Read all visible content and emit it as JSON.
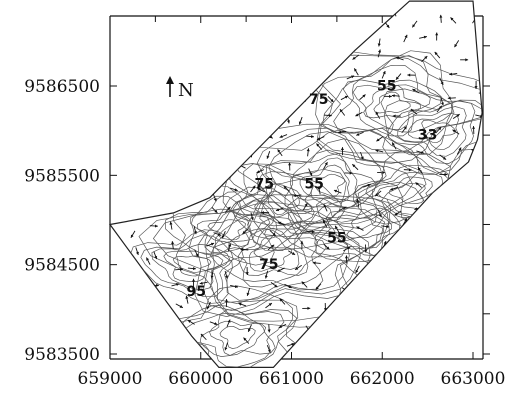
{
  "map": {
    "north_label": "N",
    "x_ticks": [
      {
        "value": 659000,
        "label": "659000"
      },
      {
        "value": 660000,
        "label": "660000"
      },
      {
        "value": 661000,
        "label": "661000"
      },
      {
        "value": 662000,
        "label": "662000"
      },
      {
        "value": 663000,
        "label": "663000"
      }
    ],
    "y_ticks": [
      {
        "value": 9583500,
        "label": "9583500"
      },
      {
        "value": 9584500,
        "label": "9584500"
      },
      {
        "value": 9585500,
        "label": "9585500"
      },
      {
        "value": 9586500,
        "label": "9586500"
      }
    ],
    "contour_labels": [
      {
        "text": "95",
        "x": 659950,
        "y": 9584150
      },
      {
        "text": "75",
        "x": 660700,
        "y": 9585350
      },
      {
        "text": "75",
        "x": 660750,
        "y": 9584450
      },
      {
        "text": "75",
        "x": 661300,
        "y": 9586300
      },
      {
        "text": "55",
        "x": 661250,
        "y": 9585350
      },
      {
        "text": "55",
        "x": 661500,
        "y": 9584750
      },
      {
        "text": "55",
        "x": 662050,
        "y": 9586450
      },
      {
        "text": "33",
        "x": 662500,
        "y": 9585900
      }
    ],
    "boundary": [
      [
        659000,
        9584950
      ],
      [
        659700,
        9585080
      ],
      [
        660100,
        9585250
      ],
      [
        661700,
        9586900
      ],
      [
        662300,
        9587450
      ],
      [
        663000,
        9587450
      ],
      [
        663100,
        9586200
      ],
      [
        663050,
        9585900
      ],
      [
        662950,
        9585650
      ],
      [
        662550,
        9585300
      ],
      [
        660800,
        9583350
      ],
      [
        660200,
        9583350
      ],
      [
        659900,
        9583700
      ],
      [
        659000,
        9584950
      ]
    ]
  }
}
